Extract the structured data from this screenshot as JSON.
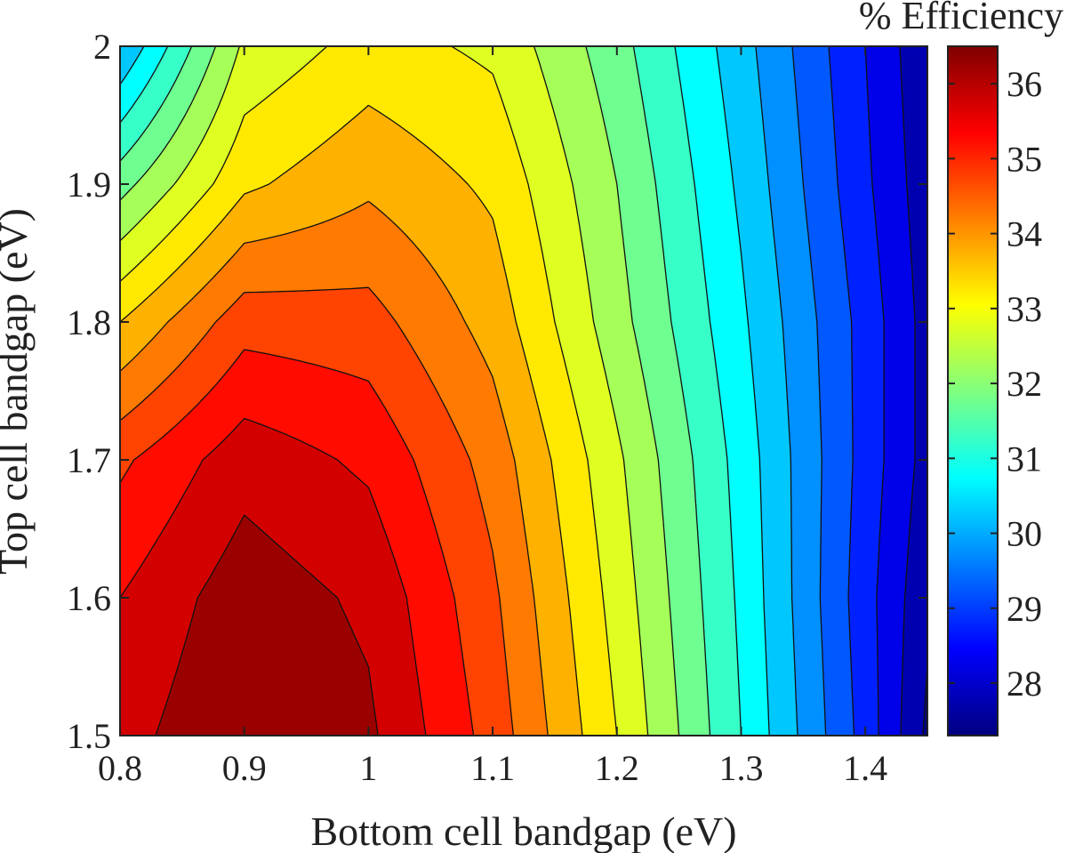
{
  "chart_data": {
    "type": "heatmap",
    "subtype": "filled-contour",
    "xlabel": "Bottom cell bandgap (eV)",
    "ylabel": "Top cell bandgap (eV)",
    "colorbar_title": "% Efficiency",
    "xlim": [
      0.8,
      1.45
    ],
    "ylim": [
      1.5,
      2.0
    ],
    "x_ticks": [
      0.8,
      0.9,
      1.0,
      1.1,
      1.2,
      1.3,
      1.4
    ],
    "x_tick_labels": [
      "0.8",
      "0.9",
      "1",
      "1.1",
      "1.2",
      "1.3",
      "1.4"
    ],
    "y_ticks": [
      1.5,
      1.6,
      1.7,
      1.8,
      1.9,
      2.0
    ],
    "y_tick_labels": [
      "1.5",
      "1.6",
      "1.7",
      "1.8",
      "1.9",
      "2"
    ],
    "colorbar_range": [
      27.3,
      36.5
    ],
    "colorbar_ticks": [
      28,
      29,
      30,
      31,
      32,
      33,
      34,
      35,
      36
    ],
    "colorbar_tick_labels": [
      "28",
      "29",
      "30",
      "31",
      "32",
      "33",
      "34",
      "35",
      "36"
    ],
    "colormap": "jet",
    "contour_step": 0.5,
    "peak": {
      "x": 0.92,
      "y": 1.5,
      "value": 36.5
    },
    "z_grid": {
      "x": [
        0.8,
        0.9,
        1.0,
        1.1,
        1.2,
        1.3,
        1.4,
        1.45
      ],
      "y": [
        1.5,
        1.6,
        1.7,
        1.8,
        1.9,
        2.0
      ],
      "values": [
        [
          35.8,
          36.5,
          36.1,
          34.8,
          33.0,
          31.0,
          28.8,
          27.4
        ],
        [
          35.5,
          36.3,
          35.9,
          34.6,
          32.8,
          30.9,
          28.7,
          27.6
        ],
        [
          34.9,
          35.8,
          35.4,
          34.3,
          32.6,
          30.8,
          28.8,
          27.8
        ],
        [
          33.5,
          34.8,
          34.7,
          33.8,
          32.2,
          30.6,
          28.8,
          27.8
        ],
        [
          31.8,
          33.4,
          33.9,
          33.4,
          32.0,
          30.4,
          28.6,
          27.7
        ],
        [
          30.0,
          32.6,
          33.2,
          32.9,
          31.7,
          30.2,
          28.5,
          27.6
        ]
      ]
    }
  }
}
